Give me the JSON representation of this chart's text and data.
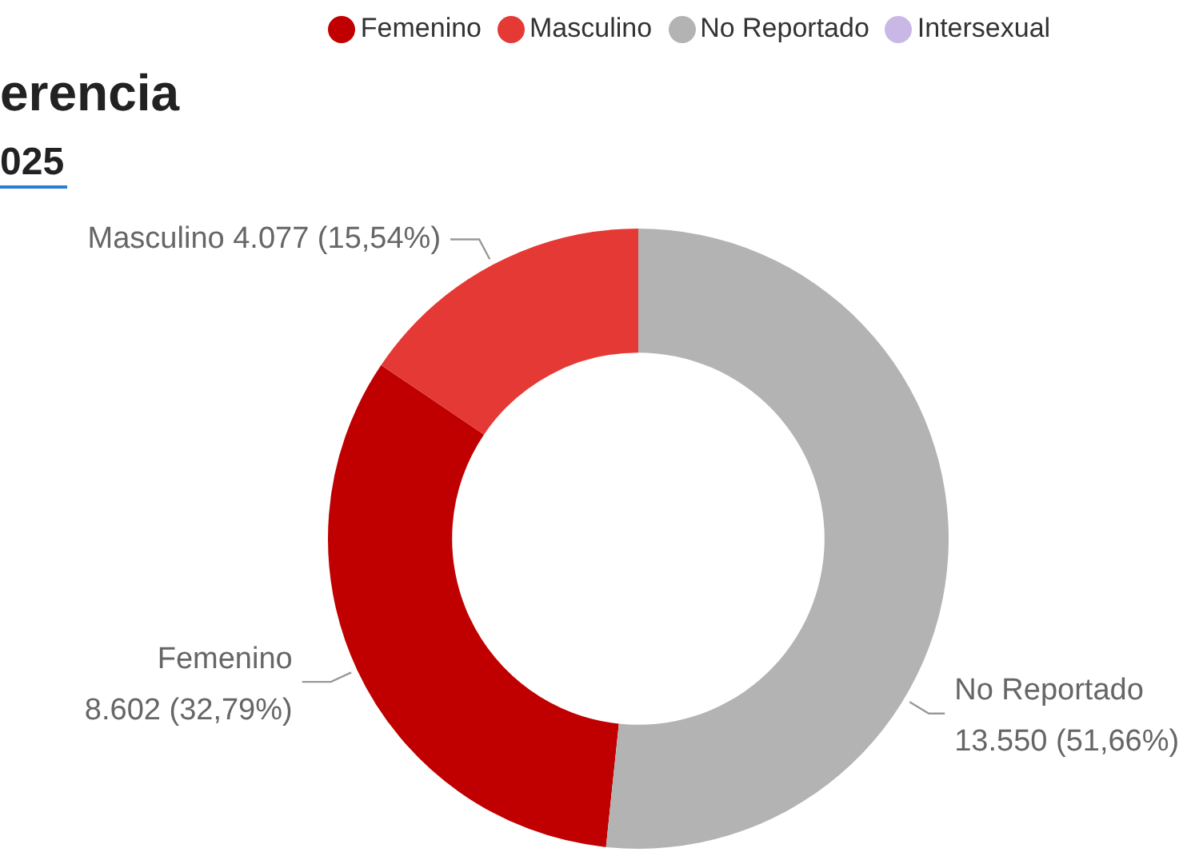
{
  "chart_data": {
    "type": "donut",
    "title": "erencia",
    "subtitle": "025",
    "categories": [
      "Femenino",
      "Masculino",
      "No Reportado",
      "Intersexual"
    ],
    "values": [
      8602,
      4077,
      13550,
      0
    ],
    "colors": [
      "#c00000",
      "#e53935",
      "#b3b3b3",
      "#c9b8e6"
    ],
    "value_labels": [
      "8.602 (32,79%)",
      "4.077 (15,54%)",
      "13.550 (51,66%)",
      null
    ],
    "legend": "top"
  }
}
